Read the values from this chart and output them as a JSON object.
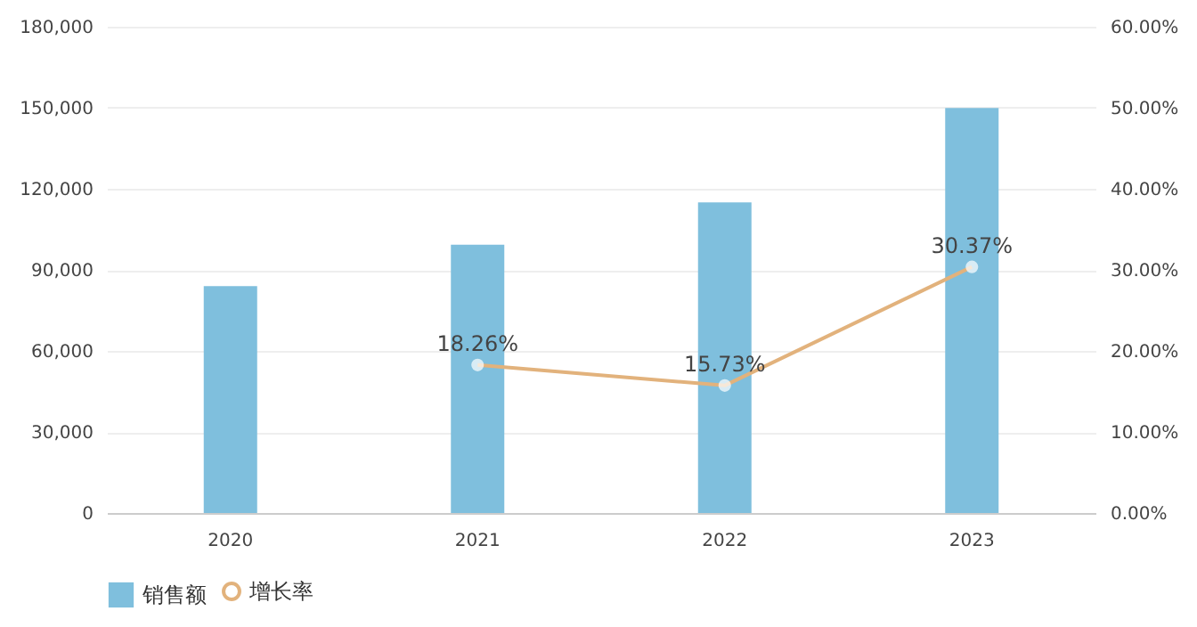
{
  "chart_data": {
    "type": "bar",
    "categories": [
      "2020",
      "2021",
      "2022",
      "2023"
    ],
    "series": [
      {
        "name": "销售额",
        "color": "#7fbfdd",
        "values": [
          84000,
          99300,
          115000,
          149900
        ]
      },
      {
        "name": "增长率",
        "type": "line",
        "axis": "y2",
        "color": "#e2b27c",
        "marker": "circle",
        "line_style": "solid",
        "values": [
          null,
          18.26,
          15.73,
          30.37
        ],
        "value_labels": [
          null,
          "18.26%",
          "15.73%",
          "30.37%"
        ]
      }
    ],
    "ylim": [
      0,
      180000
    ],
    "yticks": [
      {
        "value": 0,
        "label": "0"
      },
      {
        "value": 30000,
        "label": "30,000"
      },
      {
        "value": 60000,
        "label": "60,000"
      },
      {
        "value": 90000,
        "label": "90,000"
      },
      {
        "value": 120000,
        "label": "120,000"
      },
      {
        "value": 150000,
        "label": "150,000"
      },
      {
        "value": 180000,
        "label": "180,000"
      }
    ],
    "y2lim": [
      0,
      60
    ],
    "y2ticks": [
      {
        "value": 0,
        "label": "0.00%"
      },
      {
        "value": 10,
        "label": "10.00%"
      },
      {
        "value": 20,
        "label": "20.00%"
      },
      {
        "value": 30,
        "label": "30.00%"
      },
      {
        "value": 40,
        "label": "40.00%"
      },
      {
        "value": 50,
        "label": "50.00%"
      },
      {
        "value": 60,
        "label": "60.00%"
      }
    ],
    "grid": "y",
    "legend": "bottom"
  }
}
